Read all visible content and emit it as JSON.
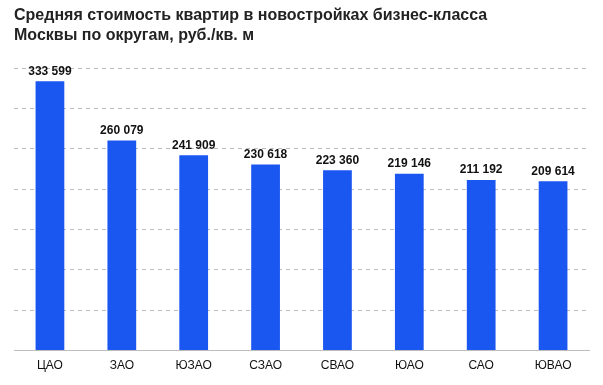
{
  "chart_data": {
    "type": "bar",
    "title": "Средняя стоимость квартир в новостройках бизнес-класса Москвы по округам, руб./кв. м",
    "categories": [
      "ЦАО",
      "ЗАО",
      "ЮЗАО",
      "СЗАО",
      "СВАО",
      "ЮАО",
      "САО",
      "ЮВАО"
    ],
    "values": [
      333599,
      260079,
      241909,
      230618,
      223360,
      219146,
      211192,
      209614
    ],
    "value_labels": [
      "333 599",
      "260 079",
      "241 909",
      "230 618",
      "223 360",
      "219 146",
      "211 192",
      "209 614"
    ],
    "color": "#1a56f0",
    "ylim": [
      0,
      350000
    ],
    "yticks": [
      0,
      50000,
      100000,
      150000,
      200000,
      250000,
      300000,
      350000
    ],
    "grid": true,
    "data_labels": true,
    "tick_labels": "x"
  }
}
